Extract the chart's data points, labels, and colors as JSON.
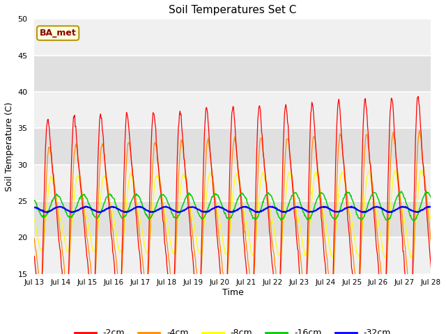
{
  "title": "Soil Temperatures Set C",
  "xlabel": "Time",
  "ylabel": "Soil Temperature (C)",
  "ylim": [
    15,
    50
  ],
  "yticks": [
    15,
    20,
    25,
    30,
    35,
    40,
    45,
    50
  ],
  "colors": {
    "-2cm": "#ff0000",
    "-4cm": "#ff8c00",
    "-8cm": "#ffff00",
    "-16cm": "#00cc00",
    "-32cm": "#0000ff"
  },
  "annotation_text": "BA_met",
  "annotation_color": "#8b0000",
  "annotation_bg": "#ffffdd",
  "plot_bg_outer": "#e8e8e8",
  "plot_bg_inner": "#f5f5f5",
  "n_points": 720,
  "x_start": 13.0,
  "x_end": 28.0,
  "xtick_labels": [
    "Jul 13",
    "Jul 14",
    "Jul 15",
    "Jul 16",
    "Jul 17",
    "Jul 18",
    "Jul 19",
    "Jul 20",
    "Jul 21",
    "Jul 22",
    "Jul 23",
    "Jul 24",
    "Jul 25",
    "Jul 26",
    "Jul 27",
    "Jul 28"
  ],
  "xtick_positions": [
    13,
    14,
    15,
    16,
    17,
    18,
    19,
    20,
    21,
    22,
    23,
    24,
    25,
    26,
    27,
    28
  ]
}
